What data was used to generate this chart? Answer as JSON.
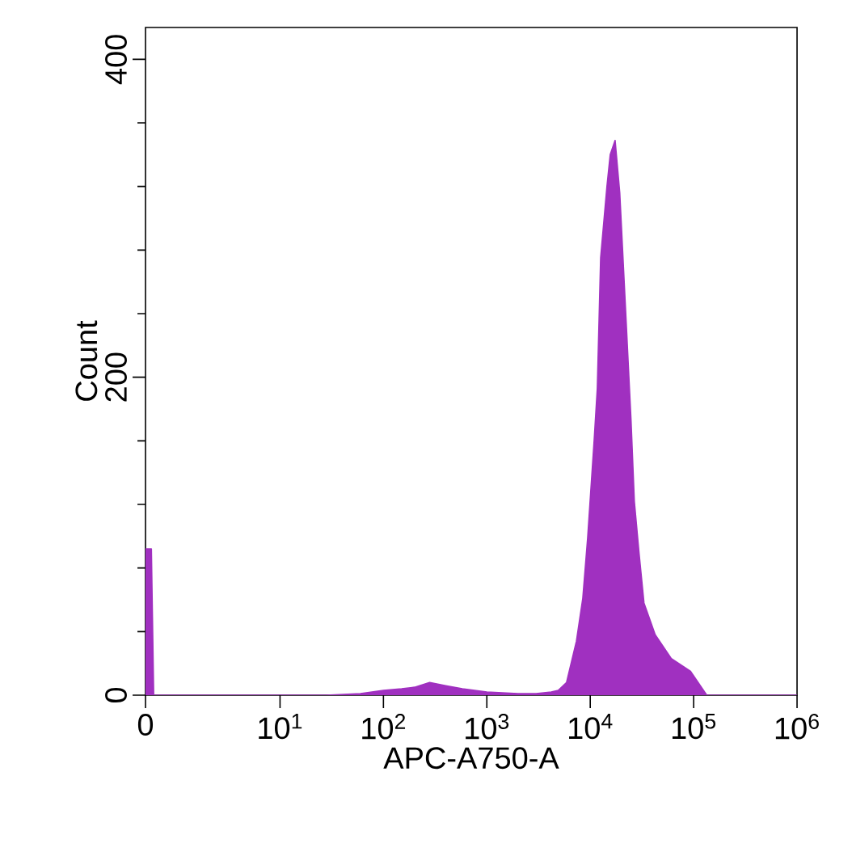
{
  "chart_data": {
    "type": "area",
    "xlabel": "APC-A750-A",
    "ylabel": "Count",
    "log": "x",
    "color": "#a030c0",
    "x": [
      0.5,
      0.57,
      0.6,
      28,
      60,
      100,
      150,
      200,
      280,
      400,
      580,
      1000,
      2000,
      3000,
      4200,
      4900,
      5900,
      7350,
      8470,
      9440,
      10900,
      11700,
      12600,
      14500,
      15600,
      17400,
      19300,
      22300,
      24800,
      26700,
      29700,
      33100,
      42500,
      60800,
      93300,
      134000,
      1000000
    ],
    "values": [
      92,
      92,
      0,
      0,
      1,
      3,
      4,
      5,
      8,
      6,
      4,
      2,
      1,
      1,
      2,
      3,
      8,
      34,
      61,
      99,
      160,
      193,
      275,
      320,
      340,
      349,
      316,
      234,
      173,
      122,
      89,
      58,
      38,
      23,
      15,
      0,
      0
    ],
    "xlim": [
      0.5,
      1000000
    ],
    "xticks": [
      {
        "value": 0.5,
        "label": "0"
      },
      {
        "value": 10,
        "label": "10$^{1}$"
      },
      {
        "value": 100,
        "label": "10$^{2}$"
      },
      {
        "value": 1000,
        "label": "10$^{3}$"
      },
      {
        "value": 10000,
        "label": "10$^{4}$"
      },
      {
        "value": 100000,
        "label": "10$^{5}$"
      },
      {
        "value": 1000000,
        "label": "10$^{6}$"
      }
    ],
    "ylim": [
      0,
      420
    ],
    "yticks": [
      0,
      200,
      400
    ]
  }
}
